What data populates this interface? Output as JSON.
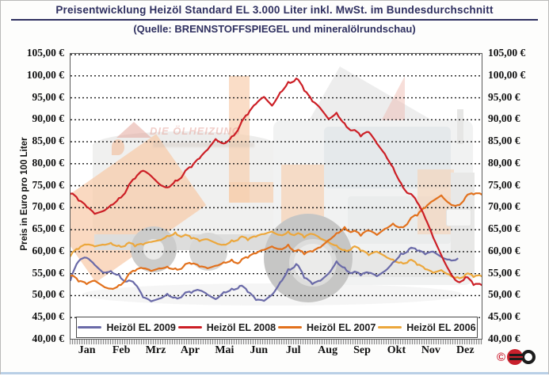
{
  "header": {
    "title": "Preisentwicklung Heizöl Standard EL 3.000 Liter inkl. MwSt. im Bundesdurchschnitt",
    "subtitle": "(Quelle: BRENNSTOFFSPIEGEL und mineralölrundschau)"
  },
  "watermark": {
    "brand": "DIE ÖLHEIZUNG"
  },
  "copyright_symbol": "©",
  "chart_data": {
    "type": "line",
    "title": "Preisentwicklung Heizöl Standard EL 3.000 Liter inkl. MwSt. im Bundesdurchschnitt",
    "subtitle": "(Quelle: BRENNSTOFFSPIEGEL und mineralölrundschau)",
    "ylabel": "Preis in Euro pro 100 Liter",
    "ylim": [
      40,
      105
    ],
    "ytick_step": 5,
    "y_tick_labels": [
      "105,00 €",
      "100,00 €",
      "95,00 €",
      "90,00 €",
      "85,00 €",
      "80,00 €",
      "75,00 €",
      "70,00 €",
      "65,00 €",
      "60,00 €",
      "55,00 €",
      "50,00 €",
      "45,00 €",
      "40,00 €"
    ],
    "x_categories": [
      "Jan",
      "Feb",
      "Mrz",
      "Apr",
      "Mai",
      "Jun",
      "Jul",
      "Aug",
      "Sep",
      "Okt",
      "Nov",
      "Dez"
    ],
    "x_unit": "weeks (52 per year)",
    "grid": "horizontal dotted",
    "legend_position": "bottom inside plot",
    "series": [
      {
        "name": "Heizöl EL 2009",
        "color": "#6a6aa8",
        "draw_order": 2,
        "values": [
          53.5,
          57.8,
          58.6,
          57.0,
          55.3,
          55.6,
          54.8,
          53.2,
          52.6,
          49.6,
          48.7,
          49.3,
          50.4,
          49.6,
          50.2,
          50.6,
          51.2,
          50.2,
          49.2,
          50.8,
          51.6,
          52.2,
          50.8,
          49.0,
          48.8,
          50.2,
          53.0,
          56.0,
          57.2,
          54.0,
          52.6,
          53.4,
          55.0,
          57.8,
          56.4,
          55.2,
          54.6,
          55.2,
          54.4,
          55.6,
          57.6,
          59.6,
          60.6,
          60.2,
          59.4,
          60.0,
          58.8,
          58.2,
          58.4
        ]
      },
      {
        "name": "Heizöl EL 2008",
        "color": "#cc1f26",
        "draw_order": 4,
        "values": [
          73.2,
          71.6,
          70.2,
          68.6,
          69.2,
          70.6,
          72.2,
          74.2,
          76.6,
          78.4,
          77.2,
          75.4,
          74.6,
          76.2,
          77.6,
          79.2,
          81.2,
          83.2,
          85.6,
          84.6,
          86.2,
          88.6,
          91.2,
          93.6,
          95.2,
          93.2,
          96.2,
          98.6,
          99.4,
          96.6,
          94.2,
          92.6,
          90.2,
          91.6,
          89.2,
          87.6,
          86.2,
          87.2,
          84.6,
          82.2,
          79.2,
          75.6,
          73.2,
          71.2,
          67.6,
          63.2,
          59.2,
          55.6,
          53.2,
          54.2,
          52.4,
          52.4
        ]
      },
      {
        "name": "Heizöl EL 2007",
        "color": "#e2711d",
        "draw_order": 3,
        "values": [
          54.5,
          53.2,
          52.6,
          53.4,
          52.2,
          51.6,
          52.4,
          54.2,
          55.6,
          56.2,
          55.6,
          56.2,
          56.6,
          56.2,
          56.6,
          57.2,
          56.6,
          56.2,
          56.8,
          57.6,
          58.2,
          57.6,
          58.6,
          59.6,
          60.4,
          61.2,
          60.6,
          61.6,
          60.2,
          59.4,
          60.0,
          61.0,
          62.6,
          64.2,
          65.6,
          64.6,
          63.6,
          64.8,
          63.8,
          65.2,
          66.4,
          65.6,
          67.0,
          68.2,
          70.0,
          71.6,
          72.8,
          71.0,
          70.6,
          72.4,
          73.0,
          73.0
        ]
      },
      {
        "name": "Heizöl EL 2006",
        "color": "#eca73c",
        "draw_order": 1,
        "values": [
          59.0,
          60.6,
          61.6,
          61.2,
          61.6,
          62.0,
          61.4,
          61.8,
          61.2,
          61.6,
          62.2,
          62.6,
          63.6,
          64.4,
          63.6,
          63.0,
          62.4,
          62.8,
          62.0,
          61.6,
          62.6,
          63.2,
          62.6,
          63.4,
          64.0,
          64.6,
          63.8,
          64.6,
          64.0,
          63.2,
          64.0,
          63.0,
          62.2,
          61.4,
          60.4,
          61.0,
          60.2,
          59.2,
          60.0,
          59.0,
          58.2,
          57.6,
          58.0,
          57.0,
          56.0,
          55.2,
          55.8,
          54.8,
          54.2,
          54.8,
          54.2,
          54.4
        ]
      }
    ]
  }
}
